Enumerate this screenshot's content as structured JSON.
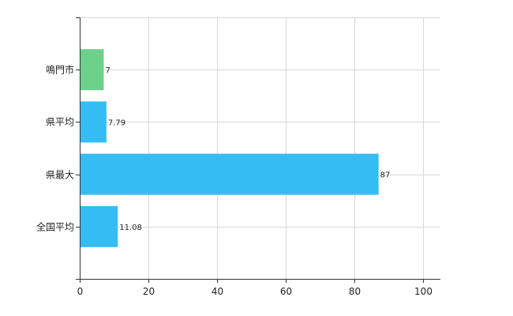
{
  "chart_data": {
    "type": "bar",
    "orientation": "horizontal",
    "categories": [
      "鳴門市",
      "県平均",
      "県最大",
      "全国平均"
    ],
    "values": [
      7,
      7.79,
      87,
      11.08
    ],
    "value_labels": [
      "7",
      "7.79",
      "87",
      "11.08"
    ],
    "bar_colors": [
      "#6dd18a",
      "#35bdf3",
      "#35bdf3",
      "#35bdf3"
    ],
    "title": "",
    "xlabel": "",
    "ylabel": "",
    "xlim": [
      0,
      105
    ],
    "x_ticks": [
      0,
      20,
      40,
      60,
      80,
      100
    ],
    "grid": true,
    "legend": "none"
  }
}
